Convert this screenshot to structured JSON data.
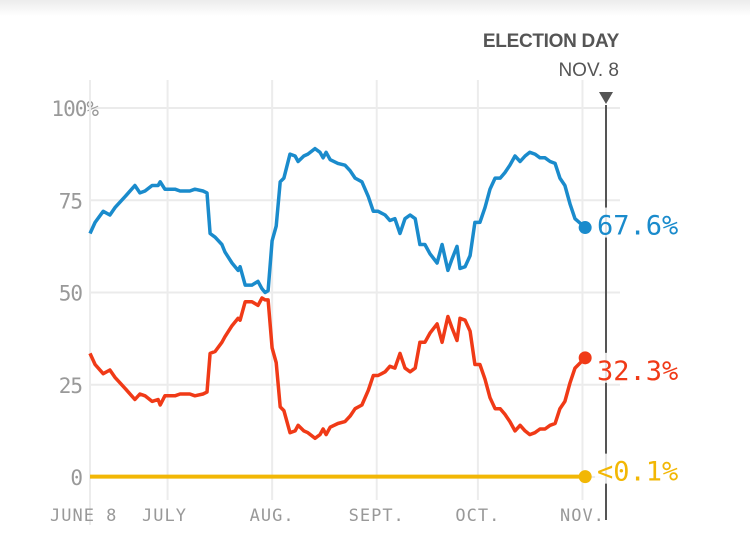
{
  "chart_data": {
    "type": "line",
    "title": "ELECTION DAY",
    "election_date_label": "NOV. 8",
    "x_unit": "days since June 8",
    "xlim": [
      0,
      153
    ],
    "ylim": [
      0,
      100
    ],
    "y_ticks": [
      {
        "value": 0,
        "label": "0"
      },
      {
        "value": 25,
        "label": "25"
      },
      {
        "value": 50,
        "label": "50"
      },
      {
        "value": 75,
        "label": "75"
      },
      {
        "value": 100,
        "label": "100%"
      }
    ],
    "x_ticks": [
      {
        "day": 0,
        "label": "JUNE 8"
      },
      {
        "day": 23,
        "label": "JULY"
      },
      {
        "day": 54,
        "label": "AUG."
      },
      {
        "day": 85,
        "label": "SEPT."
      },
      {
        "day": 115,
        "label": "OCT."
      },
      {
        "day": 146,
        "label": "NOV."
      }
    ],
    "election_day": 153,
    "x": [
      0,
      1.5,
      3.9,
      5.9,
      7.4,
      10.4,
      13.3,
      14.8,
      16.3,
      18.4,
      20.2,
      20.8,
      22.2,
      25.2,
      26.7,
      29.6,
      31.1,
      33.5,
      34.7,
      35.6,
      37.1,
      39.1,
      40,
      42.1,
      43.9,
      44.5,
      46,
      48,
      49.8,
      51,
      51.9,
      52.8,
      54,
      55.2,
      56.4,
      57.5,
      59.3,
      60.8,
      61.7,
      63.4,
      64.6,
      66.7,
      68.2,
      69.1,
      70,
      71.2,
      73.5,
      75.6,
      77.1,
      78.6,
      80.6,
      82.5,
      84,
      85.4,
      87.5,
      88.9,
      90.4,
      91.9,
      93.4,
      94.9,
      96.4,
      97.8,
      99.3,
      100.8,
      102.9,
      104.4,
      106.1,
      107.3,
      108.8,
      109.7,
      111.2,
      112.7,
      114.1,
      115.6,
      117.1,
      118.6,
      120.1,
      121.6,
      123,
      124.5,
      126,
      127.5,
      129,
      130.4,
      131.9,
      133.4,
      134.9,
      136.4,
      137.9,
      139.3,
      140.8,
      142.3,
      143.8,
      146.8
    ],
    "series": [
      {
        "name": "blue",
        "color": "#1a8bcc",
        "final_label": "67.6%",
        "values": [
          66,
          69,
          72,
          71,
          73,
          76,
          79,
          77,
          77.5,
          79,
          79,
          80,
          78,
          78,
          77.5,
          77.5,
          78,
          77.5,
          77,
          66,
          65,
          63,
          61,
          58,
          56,
          57,
          52,
          52,
          53,
          51,
          50,
          50.5,
          64,
          68,
          80,
          81,
          87.5,
          87,
          85.5,
          87,
          87.5,
          89,
          88,
          86.5,
          88,
          86,
          85,
          84.5,
          83,
          81,
          80,
          76,
          72,
          72,
          71,
          69.5,
          70,
          66,
          70,
          71,
          70,
          63,
          63,
          60.5,
          58,
          63,
          56,
          59,
          62.5,
          56.5,
          57,
          60,
          69,
          69,
          73,
          78,
          81,
          81,
          82.5,
          84.5,
          87,
          85.5,
          87,
          88,
          87.5,
          86.5,
          86.5,
          85.5,
          85,
          81,
          79,
          74,
          70,
          67.6
        ]
      },
      {
        "name": "red",
        "color": "#f03a17",
        "final_label": "32.3%",
        "values": [
          33.5,
          30.5,
          28,
          29,
          27,
          24,
          21,
          22.5,
          22,
          20.5,
          21,
          19.5,
          22,
          22,
          22.5,
          22.5,
          22,
          22.5,
          23,
          33.5,
          34,
          36.5,
          38,
          41,
          43,
          42.5,
          47.5,
          47.5,
          46.5,
          48.5,
          48,
          48,
          35,
          31,
          19,
          18,
          12,
          12.5,
          14,
          12.5,
          12,
          10.5,
          11.5,
          13,
          11.5,
          13.5,
          14.5,
          15,
          16.5,
          18.5,
          19.5,
          23.5,
          27.5,
          27.5,
          28.5,
          30,
          29.5,
          33.5,
          29.5,
          28.5,
          29.5,
          36.5,
          36.5,
          39,
          41.5,
          36.5,
          43.5,
          40.5,
          37,
          43,
          42.5,
          39.5,
          30.5,
          30.5,
          26.5,
          21.5,
          18.5,
          18.5,
          17,
          15,
          12.5,
          14,
          12.5,
          11.5,
          12,
          13,
          13,
          14,
          14.5,
          18.5,
          20.5,
          25.5,
          29.5,
          32.3
        ]
      },
      {
        "name": "yellow",
        "color": "#f2b705",
        "final_label": "<0.1%",
        "values": [
          0.1,
          0.1,
          0.1,
          0.1,
          0.1,
          0.1,
          0.1,
          0.1,
          0.1,
          0.1,
          0.1,
          0.1,
          0.1,
          0.1,
          0.1,
          0.1,
          0.1,
          0.1,
          0.1,
          0.1,
          0.1,
          0.1,
          0.1,
          0.1,
          0.1,
          0.1,
          0.1,
          0.1,
          0.1,
          0.1,
          0.1,
          0.1,
          0.1,
          0.1,
          0.1,
          0.1,
          0.1,
          0.1,
          0.1,
          0.1,
          0.1,
          0.1,
          0.1,
          0.1,
          0.1,
          0.1,
          0.1,
          0.1,
          0.1,
          0.1,
          0.1,
          0.1,
          0.1,
          0.1,
          0.1,
          0.1,
          0.1,
          0.1,
          0.1,
          0.1,
          0.1,
          0.1,
          0.1,
          0.1,
          0.1,
          0.1,
          0.1,
          0.1,
          0.1,
          0.1,
          0.1,
          0.1,
          0.1,
          0.1,
          0.1,
          0.1,
          0.1,
          0.1,
          0.1,
          0.1,
          0.1,
          0.1,
          0.1,
          0.1,
          0.1,
          0.1,
          0.1,
          0.1,
          0.1,
          0.1,
          0.1,
          0.1,
          0.1,
          0.1
        ]
      }
    ]
  }
}
